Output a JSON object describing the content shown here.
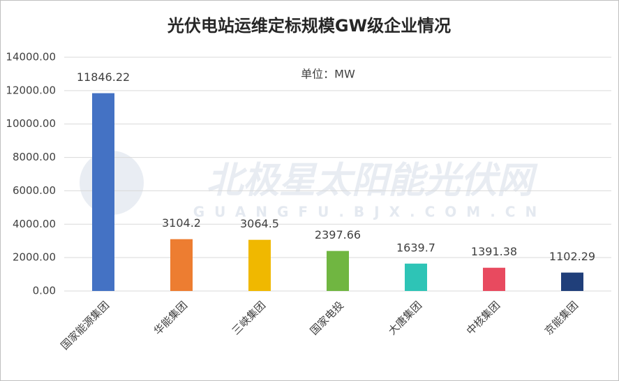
{
  "chart_data": {
    "type": "bar",
    "title": "光伏电站运维定标规模GW级企业情况",
    "unit_note": "单位：MW",
    "watermark": "北极星太阳能光伏网",
    "watermark_sub": "GUANGFU.BJX.COM.CN",
    "categories": [
      "国家能源集团",
      "华能集团",
      "三峡集团",
      "国家电投",
      "大唐集团",
      "中核集团",
      "京能集团"
    ],
    "values": [
      11846.22,
      3104.2,
      3064.5,
      2397.66,
      1639.7,
      1391.38,
      1102.29
    ],
    "colors": [
      "#4472c4",
      "#ed7d31",
      "#f0b800",
      "#70b641",
      "#2ec4b6",
      "#e84a5f",
      "#203f7a"
    ],
    "ylim": [
      0,
      14000
    ],
    "yticks": [
      {
        "value": 0,
        "label": "0.00"
      },
      {
        "value": 2000,
        "label": "2000.00"
      },
      {
        "value": 4000,
        "label": "4000.00"
      },
      {
        "value": 6000,
        "label": "6000.00"
      },
      {
        "value": 8000,
        "label": "8000.00"
      },
      {
        "value": 10000,
        "label": "10000.00"
      },
      {
        "value": 12000,
        "label": "12000.00"
      },
      {
        "value": 14000,
        "label": "14000.00"
      }
    ],
    "grid": true
  }
}
